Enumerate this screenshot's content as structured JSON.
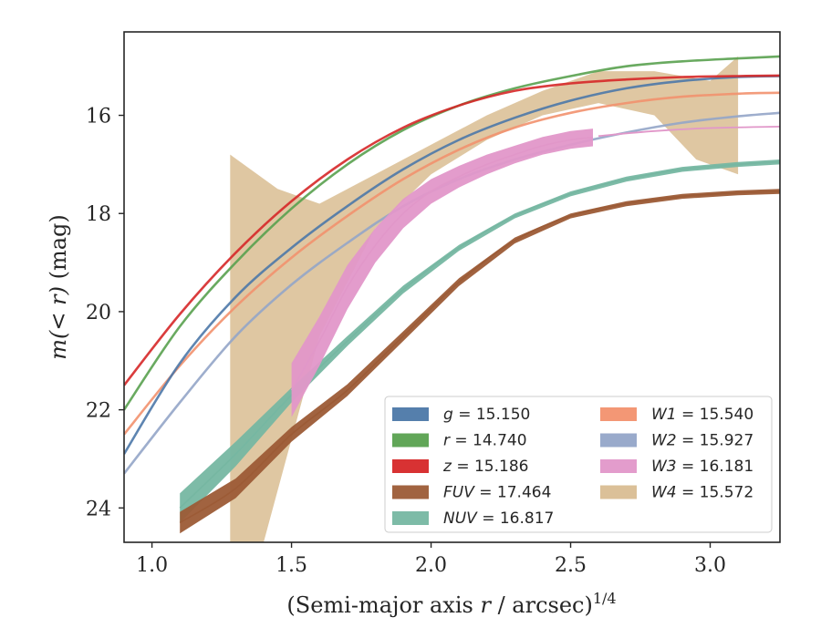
{
  "chart_data": {
    "type": "line",
    "title": "",
    "xlabel": "(Semi-major axis r / arcsec)",
    "xlabel_var": "r",
    "xlabel_pre": "(Semi-major axis ",
    "xlabel_post": " / arcsec)",
    "xlabel_sup": "1/4",
    "ylabel": "m(< r) (mag)",
    "ylabel_func": "m(< r)",
    "ylabel_unit": " (mag)",
    "xlim": [
      0.9,
      3.25
    ],
    "ylim": [
      24.7,
      14.3
    ],
    "y_inverted": true,
    "x_ticks": [
      1.0,
      1.5,
      2.0,
      2.5,
      3.0
    ],
    "x_tick_labels": [
      "1.0",
      "1.5",
      "2.0",
      "2.5",
      "3.0"
    ],
    "y_ticks": [
      16,
      18,
      20,
      22,
      24
    ],
    "y_tick_labels": [
      "16",
      "18",
      "20",
      "22",
      "24"
    ],
    "grid": false,
    "legend_position": "bottom-right",
    "series": [
      {
        "band": "g",
        "name": "g = 15.150",
        "label_var": "g",
        "label_val": " = 15.150",
        "color": "#4c78a8",
        "x": [
          0.9,
          1.1,
          1.3,
          1.5,
          1.7,
          1.9,
          2.1,
          2.3,
          2.5,
          2.7,
          2.9,
          3.1,
          3.25
        ],
        "y": [
          22.9,
          21.05,
          19.7,
          18.7,
          17.85,
          17.1,
          16.5,
          16.05,
          15.7,
          15.45,
          15.3,
          15.22,
          15.2
        ]
      },
      {
        "band": "r",
        "name": "r = 14.740",
        "label_var": "r",
        "label_val": " = 14.740",
        "color": "#59a14f",
        "x": [
          0.9,
          1.1,
          1.3,
          1.5,
          1.7,
          1.9,
          2.1,
          2.3,
          2.5,
          2.7,
          2.9,
          3.1,
          3.25
        ],
        "y": [
          22.0,
          20.3,
          19.0,
          17.9,
          17.0,
          16.3,
          15.8,
          15.45,
          15.2,
          15.0,
          14.9,
          14.84,
          14.8
        ]
      },
      {
        "band": "z",
        "name": "z = 15.186",
        "label_var": "z",
        "label_val": " = 15.186",
        "color": "#d62728",
        "x": [
          0.9,
          1.1,
          1.3,
          1.5,
          1.7,
          1.9,
          2.1,
          2.3,
          2.5,
          2.7,
          2.9,
          3.1,
          3.25
        ],
        "y": [
          21.5,
          20.05,
          18.8,
          17.75,
          16.9,
          16.25,
          15.8,
          15.5,
          15.35,
          15.27,
          15.22,
          15.2,
          15.19
        ]
      },
      {
        "band": "FUV",
        "name": "FUV = 17.464",
        "label_var": "FUV",
        "label_val": " = 17.464",
        "color": "#9c5b36",
        "x": [
          1.1,
          1.3,
          1.5,
          1.7,
          1.9,
          2.1,
          2.3,
          2.5,
          2.7,
          2.9,
          3.1,
          3.25
        ],
        "y": [
          24.3,
          23.6,
          22.5,
          21.6,
          20.5,
          19.4,
          18.55,
          18.05,
          17.8,
          17.65,
          17.58,
          17.55
        ],
        "band_width": [
          0.22,
          0.2,
          0.15,
          0.12,
          0.1,
          0.08,
          0.06,
          0.05,
          0.05,
          0.05,
          0.05,
          0.05
        ]
      },
      {
        "band": "NUV",
        "name": "NUV = 16.817",
        "label_var": "NUV",
        "label_val": " = 16.817",
        "color": "#76b7a2",
        "x": [
          1.1,
          1.3,
          1.5,
          1.7,
          1.9,
          2.1,
          2.3,
          2.5,
          2.7,
          2.9,
          3.1,
          3.25
        ],
        "y": [
          24.0,
          22.9,
          21.7,
          20.6,
          19.55,
          18.7,
          18.05,
          17.6,
          17.3,
          17.1,
          17.0,
          16.95
        ],
        "band_width": [
          0.3,
          0.25,
          0.15,
          0.1,
          0.08,
          0.06,
          0.05,
          0.05,
          0.05,
          0.05,
          0.05,
          0.05
        ]
      },
      {
        "band": "W1",
        "name": "W1 = 15.540",
        "label_var": "W1",
        "label_val": " = 15.540",
        "color": "#f2916e",
        "x": [
          0.9,
          1.1,
          1.3,
          1.5,
          1.7,
          1.9,
          2.1,
          2.3,
          2.5,
          2.7,
          2.9,
          3.1,
          3.25
        ],
        "y": [
          22.5,
          21.1,
          19.9,
          18.9,
          18.05,
          17.3,
          16.7,
          16.25,
          15.95,
          15.75,
          15.62,
          15.56,
          15.54
        ]
      },
      {
        "band": "W2",
        "name": "W2 = 15.927",
        "label_var": "W2",
        "label_val": " = 15.927",
        "color": "#93a5c8",
        "x": [
          0.9,
          1.1,
          1.3,
          1.5,
          1.7,
          1.9,
          2.1,
          2.3,
          2.5,
          2.7,
          2.9,
          3.1,
          3.25
        ],
        "y": [
          23.3,
          21.85,
          20.5,
          19.45,
          18.6,
          17.85,
          17.3,
          16.9,
          16.6,
          16.35,
          16.15,
          16.02,
          15.95
        ]
      },
      {
        "band": "W3",
        "name": "W3 = 16.181",
        "label_var": "W3",
        "label_val": " = 16.181",
        "color": "#e197c9",
        "x": [
          1.5,
          1.6,
          1.7,
          1.8,
          1.9,
          2.0,
          2.1,
          2.2,
          2.3,
          2.4,
          2.5,
          2.58
        ],
        "y": [
          21.6,
          20.6,
          19.5,
          18.65,
          18.0,
          17.55,
          17.25,
          17.0,
          16.8,
          16.62,
          16.5,
          16.45
        ],
        "band_width": [
          0.55,
          0.5,
          0.45,
          0.35,
          0.3,
          0.25,
          0.22,
          0.2,
          0.18,
          0.18,
          0.18,
          0.18
        ],
        "extension_x": [
          2.6,
          2.8,
          3.0,
          3.25
        ],
        "extension_y": [
          16.42,
          16.32,
          16.26,
          16.23
        ]
      },
      {
        "band": "W4",
        "name": "W4 = 15.572",
        "label_var": "W4",
        "label_val": " = 15.572",
        "color": "#d9bd92",
        "upper_x": [
          1.28,
          1.45,
          1.6,
          1.8,
          2.0,
          2.2,
          2.4,
          2.6,
          2.8,
          3.0,
          3.1
        ],
        "upper_y": [
          16.8,
          17.5,
          17.8,
          17.2,
          16.6,
          16.0,
          15.5,
          15.1,
          15.1,
          15.3,
          14.8
        ],
        "lower_x": [
          1.28,
          1.4,
          1.6,
          1.8,
          2.0,
          2.2,
          2.4,
          2.6,
          2.8,
          2.95,
          3.1
        ],
        "lower_y": [
          24.7,
          24.7,
          20.5,
          18.3,
          17.2,
          16.5,
          16.0,
          15.75,
          16.0,
          16.9,
          17.2
        ]
      }
    ]
  }
}
